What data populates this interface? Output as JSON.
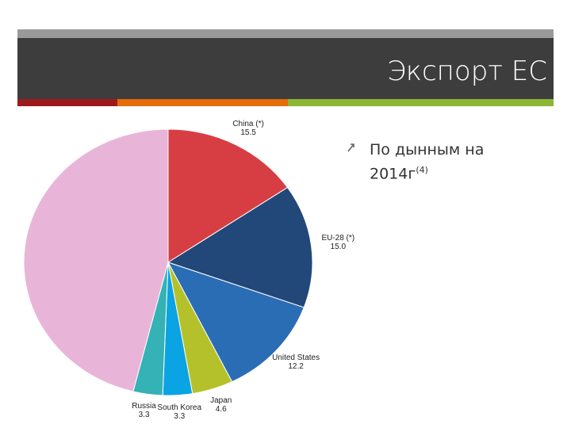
{
  "header": {
    "title": "Экспорт ЕС"
  },
  "bullet": {
    "text": "По дынным на 2014г",
    "superscript": "(4)"
  },
  "chart_data": {
    "type": "pie",
    "categories": [
      "China (*)",
      "EU-28 (*)",
      "United States",
      "Japan",
      "South Korea",
      "Russia",
      null
    ],
    "values": [
      15.5,
      15.0,
      12.2,
      4.6,
      3.3,
      3.3,
      46.1
    ],
    "value_labels": [
      "15.5",
      "15.0",
      "12.2",
      "4.6",
      "3.3",
      "3.3",
      null
    ],
    "colors": [
      "#d63e43",
      "#22487a",
      "#2a6db5",
      "#b5c12a",
      "#0aa3e3",
      "#35b2b5",
      "#e8b5d8"
    ]
  }
}
